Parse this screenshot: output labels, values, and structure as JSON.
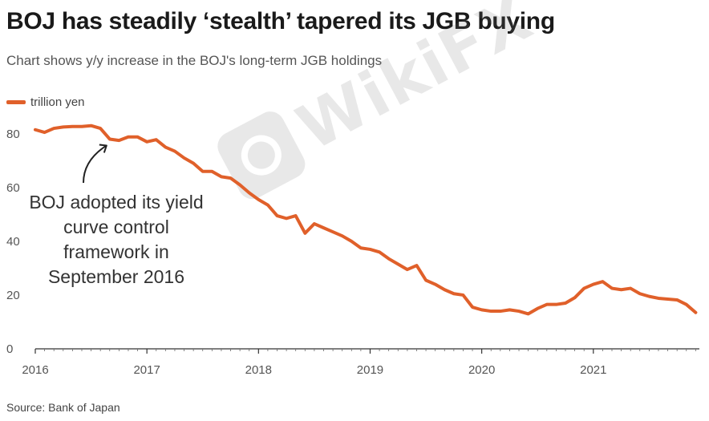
{
  "header": {
    "title": "BOJ has steadily ‘stealth’ tapered its JGB buying",
    "subtitle": "Chart shows y/y increase in the BOJ's long-term JGB holdings"
  },
  "legend": {
    "label": "trillion yen",
    "color": "#e0602a"
  },
  "source": "Source: Bank of Japan",
  "watermark": {
    "text": "WikiFX"
  },
  "annotation": {
    "lines": [
      "BOJ adopted its yield",
      "curve control",
      "framework in",
      "September 2016"
    ],
    "anchor": {
      "date": 2016.667,
      "value": 78
    }
  },
  "chart_data": {
    "type": "line",
    "title": "",
    "xlabel": "",
    "ylabel": "",
    "xlim": [
      2016.0,
      2021.95
    ],
    "ylim": [
      0,
      85
    ],
    "x_ticks": [
      2016,
      2017,
      2018,
      2019,
      2020,
      2021
    ],
    "y_ticks": [
      0,
      20,
      40,
      60,
      80
    ],
    "grid": false,
    "legend_position": "top-left",
    "series": [
      {
        "name": "trillion yen",
        "color": "#e0602a",
        "x": [
          2016.0,
          2016.083,
          2016.167,
          2016.25,
          2016.333,
          2016.417,
          2016.5,
          2016.583,
          2016.667,
          2016.75,
          2016.833,
          2016.917,
          2017.0,
          2017.083,
          2017.167,
          2017.25,
          2017.333,
          2017.417,
          2017.5,
          2017.583,
          2017.667,
          2017.75,
          2017.833,
          2017.917,
          2018.0,
          2018.083,
          2018.167,
          2018.25,
          2018.333,
          2018.417,
          2018.5,
          2018.583,
          2018.667,
          2018.75,
          2018.833,
          2018.917,
          2019.0,
          2019.083,
          2019.167,
          2019.25,
          2019.333,
          2019.417,
          2019.5,
          2019.583,
          2019.667,
          2019.75,
          2019.833,
          2019.917,
          2020.0,
          2020.083,
          2020.167,
          2020.25,
          2020.333,
          2020.417,
          2020.5,
          2020.583,
          2020.667,
          2020.75,
          2020.833,
          2020.917,
          2021.0,
          2021.083,
          2021.167,
          2021.25,
          2021.333,
          2021.417,
          2021.5,
          2021.583,
          2021.667,
          2021.75,
          2021.833,
          2021.917
        ],
        "values": [
          81.5,
          80.5,
          82,
          82.5,
          82.7,
          82.7,
          83,
          82,
          78,
          77.5,
          78.8,
          78.8,
          77,
          77.8,
          75,
          73.5,
          71,
          69,
          66,
          66,
          64,
          63.5,
          61,
          58,
          55.5,
          53.5,
          49.5,
          48.5,
          49.5,
          43,
          46.5,
          45,
          43.5,
          42,
          40,
          37.5,
          37,
          36,
          33.5,
          31.5,
          29.5,
          31,
          25.5,
          24,
          22,
          20.5,
          20,
          15.5,
          14.5,
          14,
          14,
          14.5,
          14,
          13,
          15,
          16.5,
          16.5,
          17,
          19,
          22.5,
          24,
          25,
          22.5,
          22,
          22.5,
          20.5,
          19.5,
          18.8,
          18.5,
          18.2,
          16.5,
          13.5
        ]
      }
    ]
  }
}
